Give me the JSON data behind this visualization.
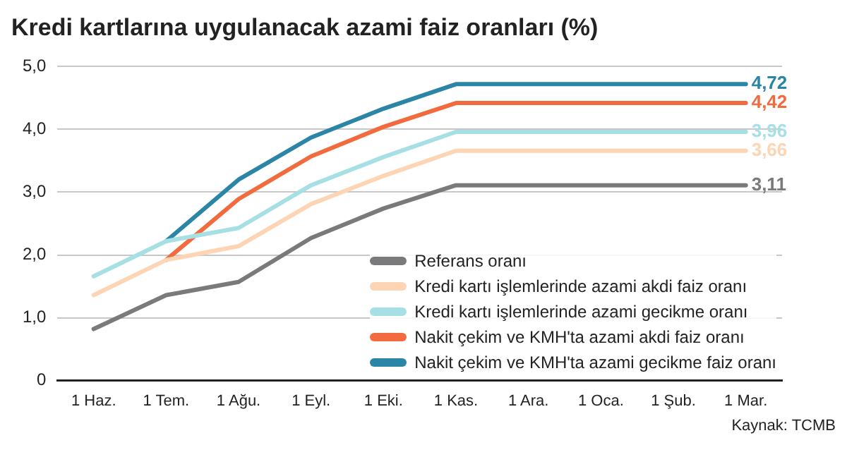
{
  "chart_data": {
    "type": "line",
    "title": "Kredi kartlarına uygulanacak azami faiz oranları (%)",
    "annotations": [
      "Kaynak: TCMB"
    ],
    "categories": [
      "1 Haz.",
      "1 Tem.",
      "1 Ağu.",
      "1 Eyl.",
      "1 Eki.",
      "1 Kas.",
      "1 Ara.",
      "1 Oca.",
      "1 Şub.",
      "1 Mar."
    ],
    "series": [
      {
        "name": "Referans oranı",
        "color": "#7a7a7c",
        "values": [
          0.82,
          1.36,
          1.57,
          2.27,
          2.74,
          3.11,
          3.11,
          3.11,
          3.11,
          3.11
        ],
        "value_labels": [
          null,
          null,
          null,
          null,
          null,
          null,
          null,
          null,
          null,
          "3,11"
        ]
      },
      {
        "name": "Kredi kartı işlemlerinde azami akdi faiz oranı",
        "color": "#fdd5b4",
        "values": [
          1.36,
          1.92,
          2.14,
          2.81,
          3.26,
          3.66,
          3.66,
          3.66,
          3.66,
          3.66
        ],
        "value_labels": [
          null,
          null,
          null,
          null,
          null,
          null,
          null,
          null,
          null,
          "3,66"
        ]
      },
      {
        "name": "Kredi kartı işlemlerinde azami gecikme oranı",
        "color": "#a6e0e4",
        "values": [
          1.66,
          2.22,
          2.43,
          3.11,
          3.56,
          3.96,
          3.96,
          3.96,
          3.96,
          3.96
        ],
        "value_labels": [
          null,
          null,
          null,
          null,
          null,
          null,
          null,
          null,
          null,
          "3,96"
        ]
      },
      {
        "name": "Nakit çekim ve KMH'ta azami akdi faiz oranı",
        "color": "#f26b3e",
        "values": [
          null,
          1.92,
          2.89,
          3.57,
          4.04,
          4.42,
          4.42,
          4.42,
          4.42,
          4.42
        ],
        "value_labels": [
          null,
          null,
          null,
          null,
          null,
          null,
          null,
          null,
          null,
          "4,42"
        ]
      },
      {
        "name": "Nakit çekim ve KMH'ta azami gecikme faiz oranı",
        "color": "#2a85a6",
        "values": [
          null,
          2.22,
          3.2,
          3.87,
          4.33,
          4.72,
          4.72,
          4.72,
          4.72,
          4.72
        ],
        "value_labels": [
          null,
          null,
          null,
          null,
          null,
          null,
          null,
          null,
          null,
          "4,72"
        ]
      }
    ],
    "ylim": [
      0,
      5
    ],
    "yticks": [
      {
        "value": 0,
        "label": "0"
      },
      {
        "value": 1,
        "label": "1,0"
      },
      {
        "value": 2,
        "label": "2,0"
      },
      {
        "value": 3,
        "label": "3,0"
      },
      {
        "value": 4,
        "label": "4,0"
      },
      {
        "value": 5,
        "label": "5,0"
      }
    ],
    "grid": "y",
    "legend": "bottom right",
    "marker": "none",
    "line_style": "solid"
  }
}
